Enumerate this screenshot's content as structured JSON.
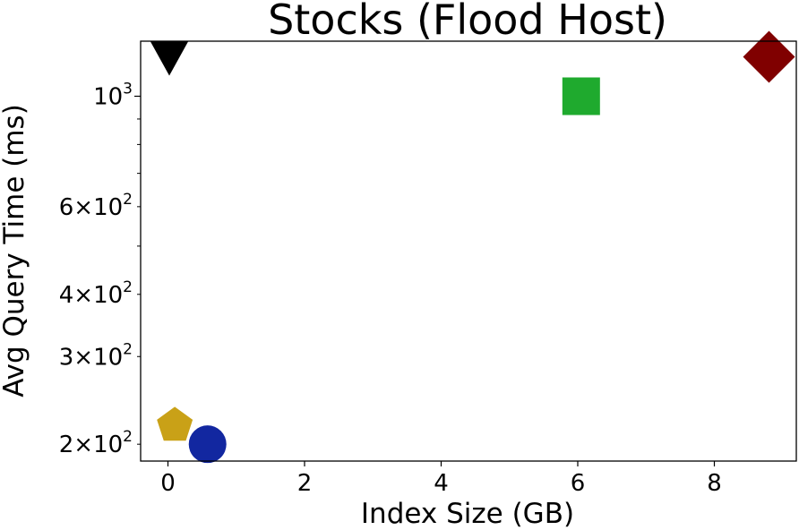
{
  "chart_data": {
    "type": "scatter",
    "title": "Stocks (Flood Host)",
    "xlabel": "Index Size (GB)",
    "ylabel": "Avg Query Time (ms)",
    "xlim": [
      -0.4,
      9.2
    ],
    "ylim": [
      185,
      1290
    ],
    "yscale": "log",
    "grid": false,
    "x_ticks": [
      {
        "value": 0,
        "label": "0"
      },
      {
        "value": 2,
        "label": "2"
      },
      {
        "value": 4,
        "label": "4"
      },
      {
        "value": 6,
        "label": "6"
      },
      {
        "value": 8,
        "label": "8"
      }
    ],
    "y_ticks_major": [
      {
        "value": 1000,
        "base": "10",
        "exp": "3"
      }
    ],
    "y_ticks_minor_labeled": [
      {
        "value": 200,
        "mant": "2",
        "base": "10",
        "exp": "2"
      },
      {
        "value": 300,
        "mant": "3",
        "base": "10",
        "exp": "2"
      },
      {
        "value": 400,
        "mant": "4",
        "base": "10",
        "exp": "2"
      },
      {
        "value": 600,
        "mant": "6",
        "base": "10",
        "exp": "2"
      }
    ],
    "y_ticks_minor_unlabeled": [
      500,
      700,
      800,
      900
    ],
    "points": [
      {
        "x": 0.02,
        "y": 1190,
        "marker": "triangle-down",
        "color": "#000000"
      },
      {
        "x": 6.05,
        "y": 1000,
        "marker": "square",
        "color": "#1faa2e"
      },
      {
        "x": 8.8,
        "y": 1200,
        "marker": "diamond",
        "color": "#800000"
      },
      {
        "x": 0.1,
        "y": 218,
        "marker": "pentagon",
        "color": "#c9a117"
      },
      {
        "x": 0.58,
        "y": 200,
        "marker": "circle",
        "color": "#1227a0"
      }
    ]
  }
}
